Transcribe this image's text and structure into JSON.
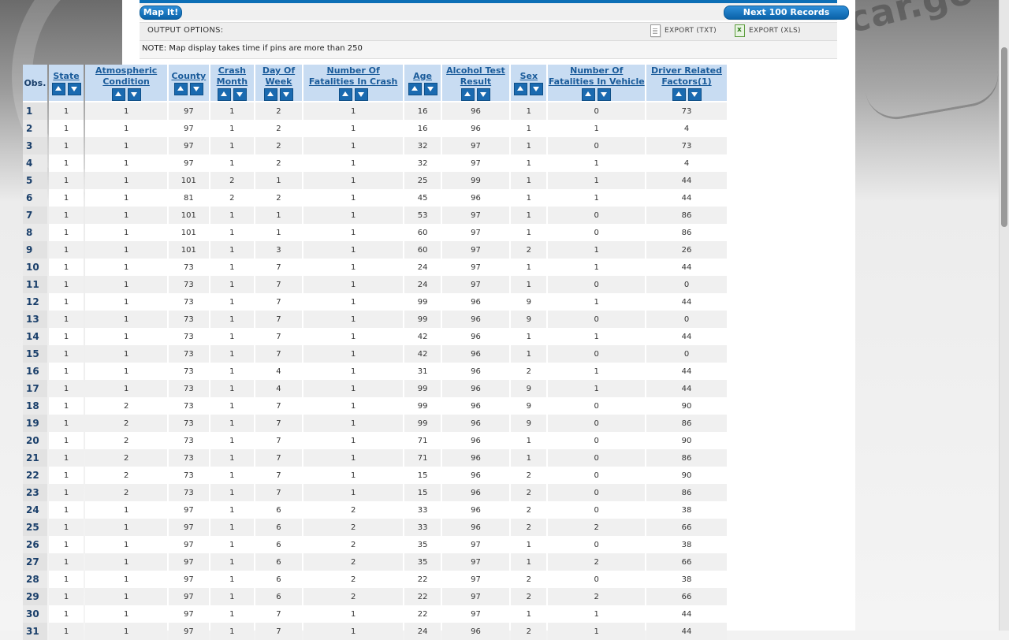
{
  "background": {
    "brand_text": "car.gov"
  },
  "toolbar": {
    "map_label": "Map It!",
    "next_label": "Next 100 Records"
  },
  "output_options": {
    "label": "OUTPUT OPTIONS:",
    "export_txt": "EXPORT (TXT)",
    "export_xls": "EXPORT (XLS)"
  },
  "note": "NOTE: Map display takes time if pins are more than 250",
  "table": {
    "obs_header": "Obs.",
    "columns": [
      "State",
      "Atmospheric Condition",
      "County",
      "Crash Month",
      "Day Of Week",
      "Number Of Fatalities In Crash",
      "Age",
      "Alcohol Test Result",
      "Sex",
      "Number Of Fatalities In Vehicle",
      "Driver Related Factors(1)"
    ],
    "rows": [
      [
        "1",
        "1",
        "1",
        "97",
        "1",
        "2",
        "1",
        "16",
        "96",
        "1",
        "0",
        "73"
      ],
      [
        "2",
        "1",
        "1",
        "97",
        "1",
        "2",
        "1",
        "16",
        "96",
        "1",
        "1",
        "4"
      ],
      [
        "3",
        "1",
        "1",
        "97",
        "1",
        "2",
        "1",
        "32",
        "97",
        "1",
        "0",
        "73"
      ],
      [
        "4",
        "1",
        "1",
        "97",
        "1",
        "2",
        "1",
        "32",
        "97",
        "1",
        "1",
        "4"
      ],
      [
        "5",
        "1",
        "1",
        "101",
        "2",
        "1",
        "1",
        "25",
        "99",
        "1",
        "1",
        "44"
      ],
      [
        "6",
        "1",
        "1",
        "81",
        "2",
        "2",
        "1",
        "45",
        "96",
        "1",
        "1",
        "44"
      ],
      [
        "7",
        "1",
        "1",
        "101",
        "1",
        "1",
        "1",
        "53",
        "97",
        "1",
        "0",
        "86"
      ],
      [
        "8",
        "1",
        "1",
        "101",
        "1",
        "1",
        "1",
        "60",
        "97",
        "1",
        "0",
        "86"
      ],
      [
        "9",
        "1",
        "1",
        "101",
        "1",
        "3",
        "1",
        "60",
        "97",
        "2",
        "1",
        "26"
      ],
      [
        "10",
        "1",
        "1",
        "73",
        "1",
        "7",
        "1",
        "24",
        "97",
        "1",
        "1",
        "44"
      ],
      [
        "11",
        "1",
        "1",
        "73",
        "1",
        "7",
        "1",
        "24",
        "97",
        "1",
        "0",
        "0"
      ],
      [
        "12",
        "1",
        "1",
        "73",
        "1",
        "7",
        "1",
        "99",
        "96",
        "9",
        "1",
        "44"
      ],
      [
        "13",
        "1",
        "1",
        "73",
        "1",
        "7",
        "1",
        "99",
        "96",
        "9",
        "0",
        "0"
      ],
      [
        "14",
        "1",
        "1",
        "73",
        "1",
        "7",
        "1",
        "42",
        "96",
        "1",
        "1",
        "44"
      ],
      [
        "15",
        "1",
        "1",
        "73",
        "1",
        "7",
        "1",
        "42",
        "96",
        "1",
        "0",
        "0"
      ],
      [
        "16",
        "1",
        "1",
        "73",
        "1",
        "4",
        "1",
        "31",
        "96",
        "2",
        "1",
        "44"
      ],
      [
        "17",
        "1",
        "1",
        "73",
        "1",
        "4",
        "1",
        "99",
        "96",
        "9",
        "1",
        "44"
      ],
      [
        "18",
        "1",
        "2",
        "73",
        "1",
        "7",
        "1",
        "99",
        "96",
        "9",
        "0",
        "90"
      ],
      [
        "19",
        "1",
        "2",
        "73",
        "1",
        "7",
        "1",
        "99",
        "96",
        "9",
        "0",
        "86"
      ],
      [
        "20",
        "1",
        "2",
        "73",
        "1",
        "7",
        "1",
        "71",
        "96",
        "1",
        "0",
        "90"
      ],
      [
        "21",
        "1",
        "2",
        "73",
        "1",
        "7",
        "1",
        "71",
        "96",
        "1",
        "0",
        "86"
      ],
      [
        "22",
        "1",
        "2",
        "73",
        "1",
        "7",
        "1",
        "15",
        "96",
        "2",
        "0",
        "90"
      ],
      [
        "23",
        "1",
        "2",
        "73",
        "1",
        "7",
        "1",
        "15",
        "96",
        "2",
        "0",
        "86"
      ],
      [
        "24",
        "1",
        "1",
        "97",
        "1",
        "6",
        "2",
        "33",
        "96",
        "2",
        "0",
        "38"
      ],
      [
        "25",
        "1",
        "1",
        "97",
        "1",
        "6",
        "2",
        "33",
        "96",
        "2",
        "2",
        "66"
      ],
      [
        "26",
        "1",
        "1",
        "97",
        "1",
        "6",
        "2",
        "35",
        "97",
        "1",
        "0",
        "38"
      ],
      [
        "27",
        "1",
        "1",
        "97",
        "1",
        "6",
        "2",
        "35",
        "97",
        "1",
        "2",
        "66"
      ],
      [
        "28",
        "1",
        "1",
        "97",
        "1",
        "6",
        "2",
        "22",
        "97",
        "2",
        "0",
        "38"
      ],
      [
        "29",
        "1",
        "1",
        "97",
        "1",
        "6",
        "2",
        "22",
        "97",
        "2",
        "2",
        "66"
      ],
      [
        "30",
        "1",
        "1",
        "97",
        "1",
        "7",
        "1",
        "22",
        "97",
        "1",
        "1",
        "44"
      ],
      [
        "31",
        "1",
        "1",
        "97",
        "1",
        "7",
        "1",
        "24",
        "96",
        "2",
        "1",
        "44"
      ]
    ]
  }
}
